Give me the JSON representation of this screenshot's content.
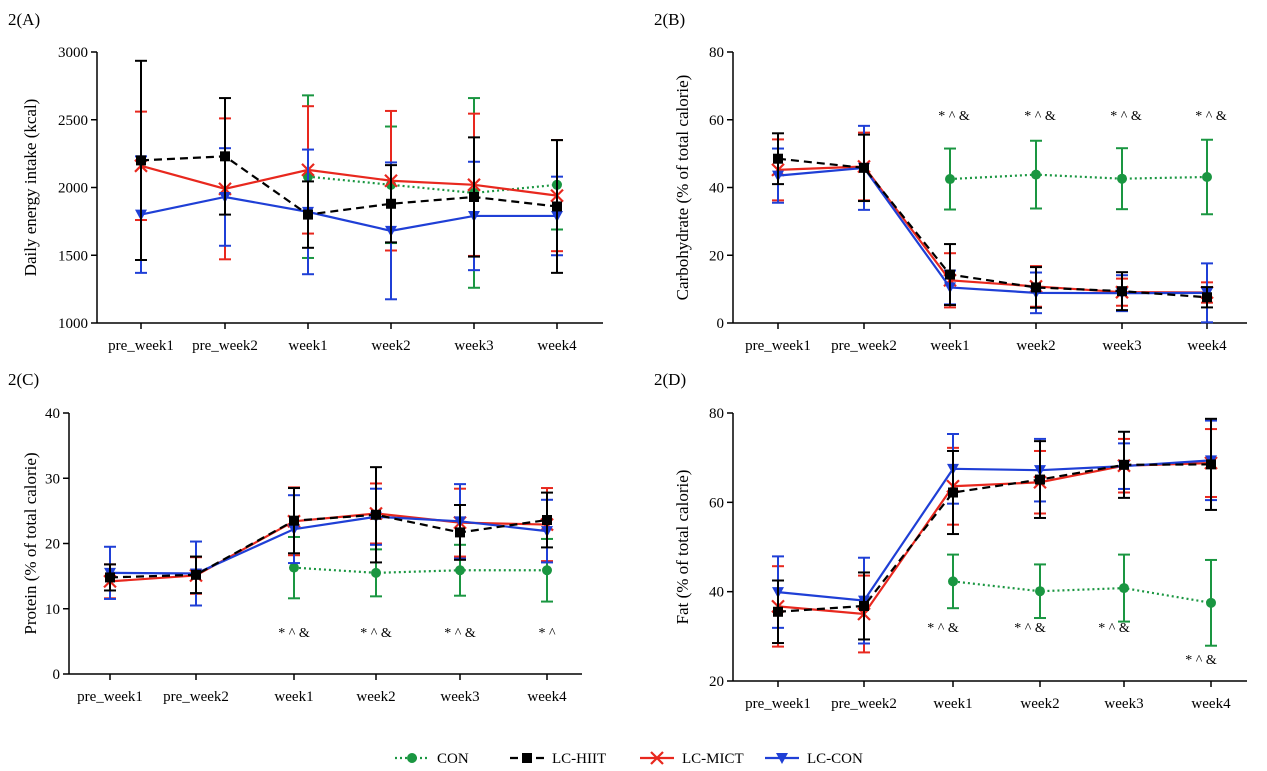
{
  "chart_data": [
    {
      "type": "line",
      "panel_label": "2(A)",
      "xlabel": "",
      "ylabel": "Daily energy intake (kcal)",
      "categories": [
        "pre_week1",
        "pre_week2",
        "week1",
        "week2",
        "week3",
        "week4"
      ],
      "ylim": [
        1000,
        3000
      ],
      "yticks": [
        "1000",
        "1500",
        "2000",
        "2500",
        "3000"
      ],
      "series": [
        {
          "name": "CON",
          "color": "#1a9641",
          "values": [
            null,
            null,
            2080,
            2020,
            1960,
            2020
          ],
          "errors": [
            null,
            null,
            600,
            430,
            700,
            330
          ]
        },
        {
          "name": "LC-HIIT",
          "color": "#000000",
          "values": [
            2200,
            2230,
            1800,
            1880,
            1930,
            1860
          ],
          "errors": [
            735,
            430,
            245,
            285,
            440,
            490
          ]
        },
        {
          "name": "LC-MICT",
          "color": "#e8281e",
          "values": [
            2160,
            1990,
            2130,
            2050,
            2020,
            1940
          ],
          "errors": [
            400,
            520,
            470,
            515,
            525,
            410
          ]
        },
        {
          "name": "LC-CON",
          "color": "#1f3fd6",
          "values": [
            1800,
            1930,
            1820,
            1680,
            1790,
            1790
          ],
          "errors": [
            430,
            360,
            460,
            505,
            400,
            290
          ]
        }
      ],
      "annotations": []
    },
    {
      "type": "line",
      "panel_label": "2(B)",
      "xlabel": "",
      "ylabel": "Carbohydrate (% of total calorie)",
      "categories": [
        "pre_week1",
        "pre_week2",
        "week1",
        "week2",
        "week3",
        "week4"
      ],
      "ylim": [
        0,
        80
      ],
      "yticks": [
        "0",
        "20",
        "40",
        "60",
        "80"
      ],
      "series": [
        {
          "name": "CON",
          "color": "#1a9641",
          "values": [
            null,
            null,
            42.5,
            43.8,
            42.6,
            43.1
          ],
          "errors": [
            null,
            null,
            9,
            10,
            9,
            11
          ]
        },
        {
          "name": "LC-HIIT",
          "color": "#000000",
          "values": [
            48.5,
            45.8,
            14.3,
            10.5,
            9.4,
            7.6
          ],
          "errors": [
            7.5,
            9.8,
            9,
            6,
            5.6,
            3
          ]
        },
        {
          "name": "LC-MICT",
          "color": "#e8281e",
          "values": [
            45.2,
            46.2,
            12.6,
            10.8,
            9.1,
            9.0
          ],
          "errors": [
            9,
            10,
            8,
            6,
            4,
            3
          ]
        },
        {
          "name": "LC-CON",
          "color": "#1f3fd6",
          "values": [
            43.5,
            45.8,
            10.5,
            8.9,
            8.8,
            8.9
          ],
          "errors": [
            8,
            12.4,
            5,
            6,
            5.3,
            8.7
          ]
        }
      ],
      "annotations": [
        "* ^ &",
        "* ^ &",
        "* ^ &",
        "* ^ &"
      ]
    },
    {
      "type": "line",
      "panel_label": "2(C)",
      "xlabel": "",
      "ylabel": "Protein (% of total calorie)",
      "categories": [
        "pre_week1",
        "pre_week2",
        "week1",
        "week2",
        "week3",
        "week4"
      ],
      "ylim": [
        0,
        40
      ],
      "yticks": [
        "0",
        "10",
        "20",
        "30",
        "40"
      ],
      "series": [
        {
          "name": "CON",
          "color": "#1a9641",
          "values": [
            null,
            null,
            16.3,
            15.5,
            15.9,
            15.9
          ],
          "errors": [
            null,
            null,
            4.7,
            3.6,
            3.9,
            4.8
          ]
        },
        {
          "name": "LC-HIIT",
          "color": "#000000",
          "values": [
            14.8,
            15.2,
            23.5,
            24.4,
            21.7,
            23.6
          ],
          "errors": [
            2,
            2.8,
            5,
            7.3,
            4.2,
            4.2
          ]
        },
        {
          "name": "LC-MICT",
          "color": "#e8281e",
          "values": [
            14.2,
            15.1,
            23.4,
            24.6,
            23.2,
            22.9
          ],
          "errors": [
            2.6,
            2.8,
            5.2,
            4.6,
            5.2,
            5.6
          ]
        },
        {
          "name": "LC-CON",
          "color": "#1f3fd6",
          "values": [
            15.5,
            15.4,
            22.2,
            24.1,
            23.4,
            21.9
          ],
          "errors": [
            4,
            4.9,
            5.2,
            4.3,
            5.7,
            4.8
          ]
        }
      ],
      "annotations": [
        "* ^ &",
        "* ^ &",
        "* ^ &",
        "* ^"
      ]
    },
    {
      "type": "line",
      "panel_label": "2(D)",
      "xlabel": "",
      "ylabel": "Fat (% of total calorie)",
      "categories": [
        "pre_week1",
        "pre_week2",
        "week1",
        "week2",
        "week3",
        "week4"
      ],
      "ylim": [
        20,
        80
      ],
      "yticks": [
        "20",
        "40",
        "60",
        "80"
      ],
      "series": [
        {
          "name": "CON",
          "color": "#1a9641",
          "values": [
            null,
            null,
            42.3,
            40.1,
            40.8,
            37.5
          ],
          "errors": [
            null,
            null,
            6,
            6,
            7.5,
            9.6
          ]
        },
        {
          "name": "LC-HIIT",
          "color": "#000000",
          "values": [
            35.5,
            36.8,
            62.2,
            65.1,
            68.4,
            68.5
          ],
          "errors": [
            7,
            7.5,
            9.3,
            8.6,
            7.4,
            10.2
          ]
        },
        {
          "name": "LC-MICT",
          "color": "#e8281e",
          "values": [
            36.7,
            35.0,
            63.6,
            64.5,
            68.2,
            68.8
          ],
          "errors": [
            9,
            8.6,
            8.6,
            7,
            6,
            7.6
          ]
        },
        {
          "name": "LC-CON",
          "color": "#1f3fd6",
          "values": [
            39.9,
            38.0,
            67.5,
            67.2,
            68.1,
            69.4
          ],
          "errors": [
            8,
            9.6,
            7.8,
            7,
            5.1,
            8.9
          ]
        }
      ],
      "annotations": [
        "* ^ &",
        "* ^ &",
        "* ^ &",
        "* ^ &"
      ]
    }
  ],
  "legend": [
    {
      "label": "CON",
      "color": "#1a9641",
      "marker": "circle",
      "line": "dotted"
    },
    {
      "label": "LC-HIIT",
      "color": "#000000",
      "marker": "square",
      "line": "dashed"
    },
    {
      "label": "LC-MICT",
      "color": "#e8281e",
      "marker": "cross",
      "line": "solid"
    },
    {
      "label": "LC-CON",
      "color": "#1f3fd6",
      "marker": "triangle-down",
      "line": "solid"
    }
  ]
}
